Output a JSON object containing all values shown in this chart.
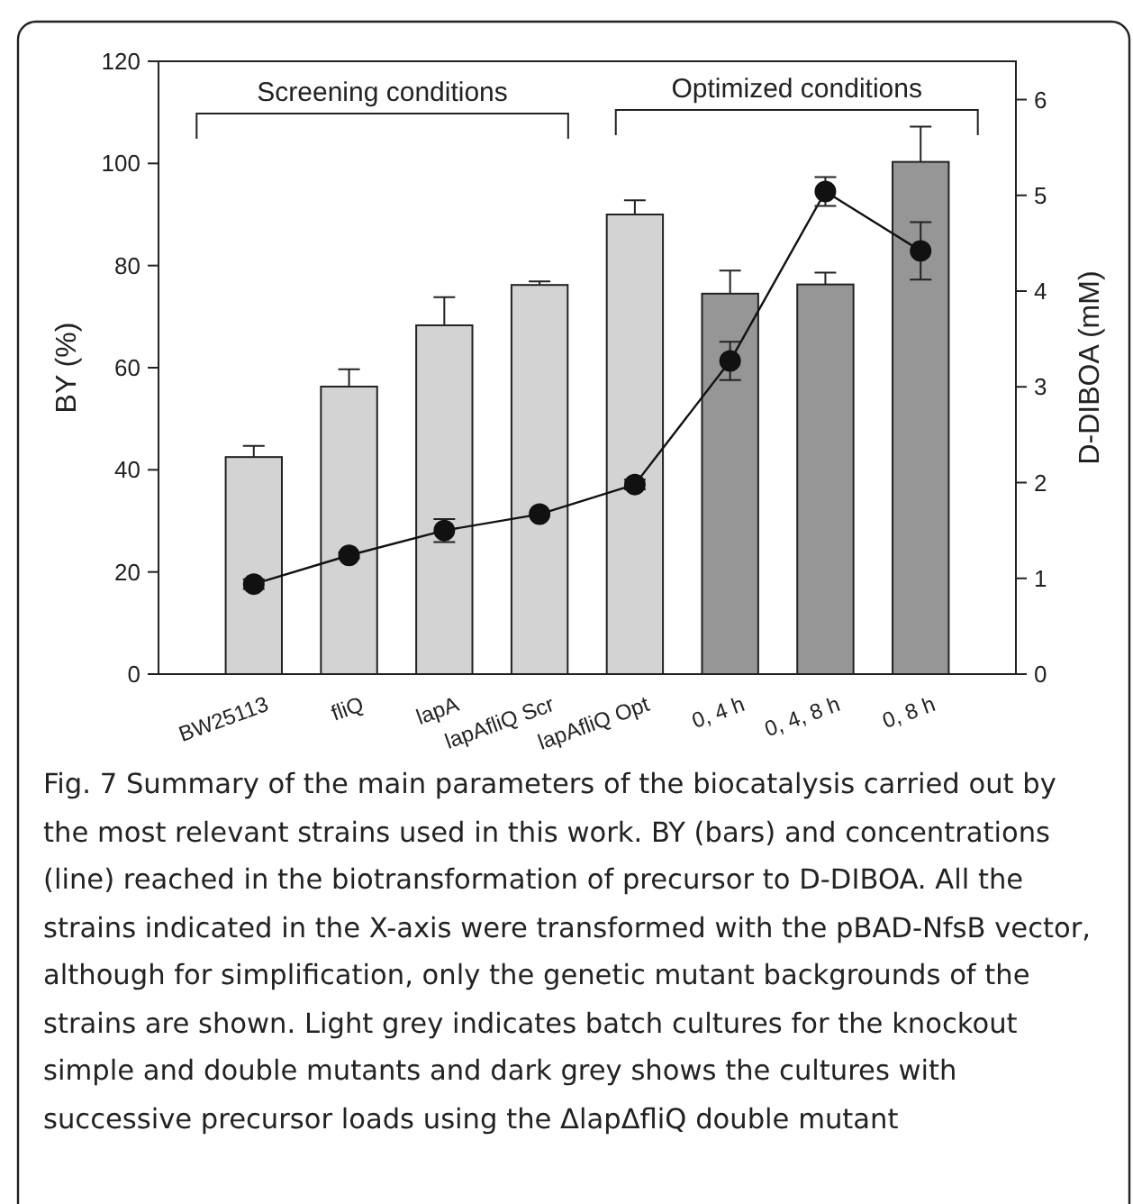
{
  "chart_data": {
    "type": "bar",
    "categories": [
      "BW25113",
      "fliQ",
      "lapA",
      "lapAfliQ Scr",
      "lapAfliQ Opt",
      "0, 4 h",
      "0, 4, 8 h",
      "0, 8 h"
    ],
    "series": [
      {
        "colors": [
          "#d3d3d3",
          "#d3d3d3",
          "#d3d3d3",
          "#d3d3d3",
          "#d3d3d3",
          "#969696",
          "#969696",
          "#969696"
        ],
        "values": [
          42.5,
          56.3,
          68.3,
          76.2,
          90,
          74.5,
          76.3,
          100.3
        ],
        "errors": [
          2.2,
          3.4,
          5.5,
          0.7,
          2.8,
          4.5,
          2.3,
          6.9
        ]
      },
      {
        "type": "line",
        "axis": "y2",
        "color": "#111111",
        "marker": "circle",
        "values": [
          0.94,
          1.24,
          1.5,
          1.67,
          1.98,
          3.27,
          5.04,
          4.42
        ],
        "errors": [
          0.05,
          0.03,
          0.12,
          null,
          0.05,
          0.2,
          0.15,
          0.3
        ]
      }
    ],
    "ylabel": "BY (%)",
    "y2label": "D-DIBOA (mM)",
    "ylim": [
      0,
      120
    ],
    "yticks": [
      0,
      20,
      40,
      60,
      80,
      100,
      120
    ],
    "y2lim": [
      0,
      6.4
    ],
    "y2ticks": [
      0,
      1,
      2,
      3,
      4,
      5,
      6
    ],
    "grid": false,
    "annotations": [
      "Screening conditions",
      "Optimized conditions",
      "Fig. 7  Summary of the main parameters of the biocatalysis carried out by the most relevant strains used in this work. BY (bars) and concentrations (line) reached in the biotransformation of precursor to D-DIBOA. All the strains indicated in the X-axis were transformed with the pBAD-NfsB vector, although for simplification, only the genetic mutant backgrounds of the strains are shown. Light grey indicates batch cultures for the knockout simple and double mutants and dark grey shows the cultures with successive precursor loads using the ΔlapΔfliQ double mutant"
    ]
  }
}
